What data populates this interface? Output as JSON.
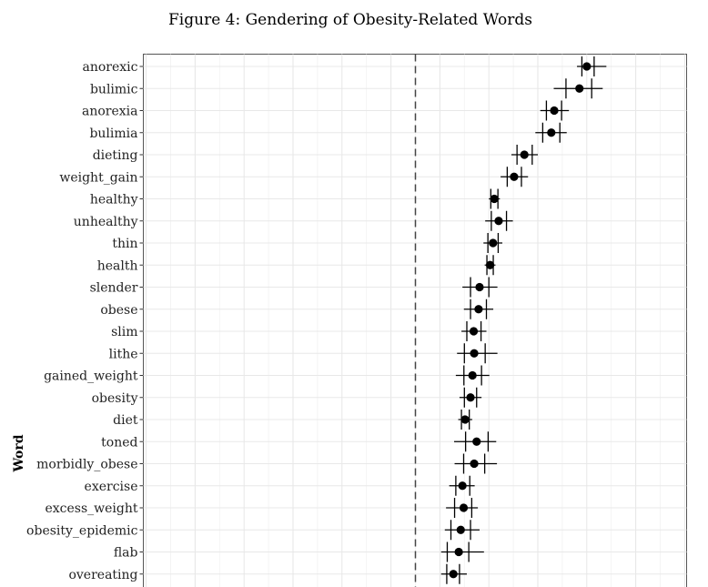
{
  "chart_data": {
    "type": "scatter",
    "title": "Figure 4: Gendering of Obesity-Related Words",
    "ylabel": "Word",
    "xlabel": "",
    "xlim": [
      -0.8,
      0.8
    ],
    "reference_line": {
      "x": 0,
      "style": "dashed"
    },
    "grid": true,
    "legend": "none",
    "words": [
      {
        "word": "anorexic",
        "estimate": 0.7,
        "inner": [
          0.68,
          0.73
        ],
        "outer": [
          0.66,
          0.78
        ]
      },
      {
        "word": "bulimic",
        "estimate": 0.67,
        "inner": [
          0.615,
          0.72
        ],
        "outer": [
          0.565,
          0.765
        ]
      },
      {
        "word": "anorexia",
        "estimate": 0.567,
        "inner": [
          0.535,
          0.597
        ],
        "outer": [
          0.51,
          0.627
        ]
      },
      {
        "word": "bulimia",
        "estimate": 0.555,
        "inner": [
          0.52,
          0.59
        ],
        "outer": [
          0.49,
          0.618
        ]
      },
      {
        "word": "dieting",
        "estimate": 0.445,
        "inner": [
          0.415,
          0.477
        ],
        "outer": [
          0.392,
          0.5
        ]
      },
      {
        "word": "weight_gain",
        "estimate": 0.403,
        "inner": [
          0.375,
          0.433
        ],
        "outer": [
          0.348,
          0.46
        ]
      },
      {
        "word": "healthy",
        "estimate": 0.322,
        "inner": [
          0.308,
          0.337
        ],
        "outer": [
          0.3,
          0.345
        ]
      },
      {
        "word": "unhealthy",
        "estimate": 0.34,
        "inner": [
          0.31,
          0.372
        ],
        "outer": [
          0.285,
          0.398
        ]
      },
      {
        "word": "thin",
        "estimate": 0.317,
        "inner": [
          0.296,
          0.338
        ],
        "outer": [
          0.278,
          0.355
        ]
      },
      {
        "word": "health",
        "estimate": 0.305,
        "inner": [
          0.292,
          0.318
        ],
        "outer": [
          0.283,
          0.327
        ]
      },
      {
        "word": "slender",
        "estimate": 0.262,
        "inner": [
          0.225,
          0.3
        ],
        "outer": [
          0.192,
          0.335
        ]
      },
      {
        "word": "obese",
        "estimate": 0.258,
        "inner": [
          0.225,
          0.29
        ],
        "outer": [
          0.198,
          0.318
        ]
      },
      {
        "word": "slim",
        "estimate": 0.238,
        "inner": [
          0.21,
          0.268
        ],
        "outer": [
          0.188,
          0.29
        ]
      },
      {
        "word": "lithe",
        "estimate": 0.24,
        "inner": [
          0.2,
          0.285
        ],
        "outer": [
          0.17,
          0.335
        ]
      },
      {
        "word": "gained_weight",
        "estimate": 0.233,
        "inner": [
          0.198,
          0.27
        ],
        "outer": [
          0.165,
          0.302
        ]
      },
      {
        "word": "obesity",
        "estimate": 0.225,
        "inner": [
          0.2,
          0.25
        ],
        "outer": [
          0.18,
          0.27
        ]
      },
      {
        "word": "diet",
        "estimate": 0.203,
        "inner": [
          0.188,
          0.22
        ],
        "outer": [
          0.175,
          0.232
        ]
      },
      {
        "word": "toned",
        "estimate": 0.25,
        "inner": [
          0.205,
          0.297
        ],
        "outer": [
          0.158,
          0.33
        ]
      },
      {
        "word": "morbidly_obese",
        "estimate": 0.24,
        "inner": [
          0.197,
          0.283
        ],
        "outer": [
          0.16,
          0.333
        ]
      },
      {
        "word": "exercise",
        "estimate": 0.192,
        "inner": [
          0.165,
          0.222
        ],
        "outer": [
          0.138,
          0.242
        ]
      },
      {
        "word": "excess_weight",
        "estimate": 0.197,
        "inner": [
          0.16,
          0.23
        ],
        "outer": [
          0.125,
          0.255
        ]
      },
      {
        "word": "obesity_epidemic",
        "estimate": 0.185,
        "inner": [
          0.145,
          0.225
        ],
        "outer": [
          0.12,
          0.262
        ]
      },
      {
        "word": "flab",
        "estimate": 0.177,
        "inner": [
          0.13,
          0.218
        ],
        "outer": [
          0.105,
          0.28
        ]
      },
      {
        "word": "overeating",
        "estimate": 0.155,
        "inner": [
          0.128,
          0.18
        ],
        "outer": [
          0.105,
          0.21
        ]
      }
    ]
  }
}
